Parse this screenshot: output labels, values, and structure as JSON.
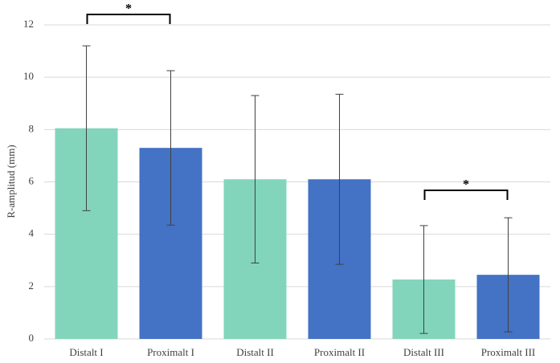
{
  "chart_data": {
    "type": "bar",
    "y_label": "R-amplitud (mm)",
    "categories": [
      "Distalt I",
      "Proximalt I",
      "Distalt II",
      "Proximalt II",
      "Distalt III",
      "Proximalt III"
    ],
    "values": [
      8.05,
      7.3,
      6.1,
      6.1,
      2.27,
      2.45
    ],
    "errors": [
      3.15,
      2.95,
      3.2,
      3.25,
      2.06,
      2.18
    ],
    "colors": [
      "#82d5bb",
      "#4472c4",
      "#82d5bb",
      "#4472c4",
      "#82d5bb",
      "#4472c4"
    ],
    "ylim": [
      0,
      12
    ],
    "yticks": [
      0,
      2,
      4,
      6,
      8,
      10,
      12
    ],
    "grid": true,
    "annotations": [
      {
        "text": "*"
      },
      {
        "text": "*"
      }
    ]
  }
}
